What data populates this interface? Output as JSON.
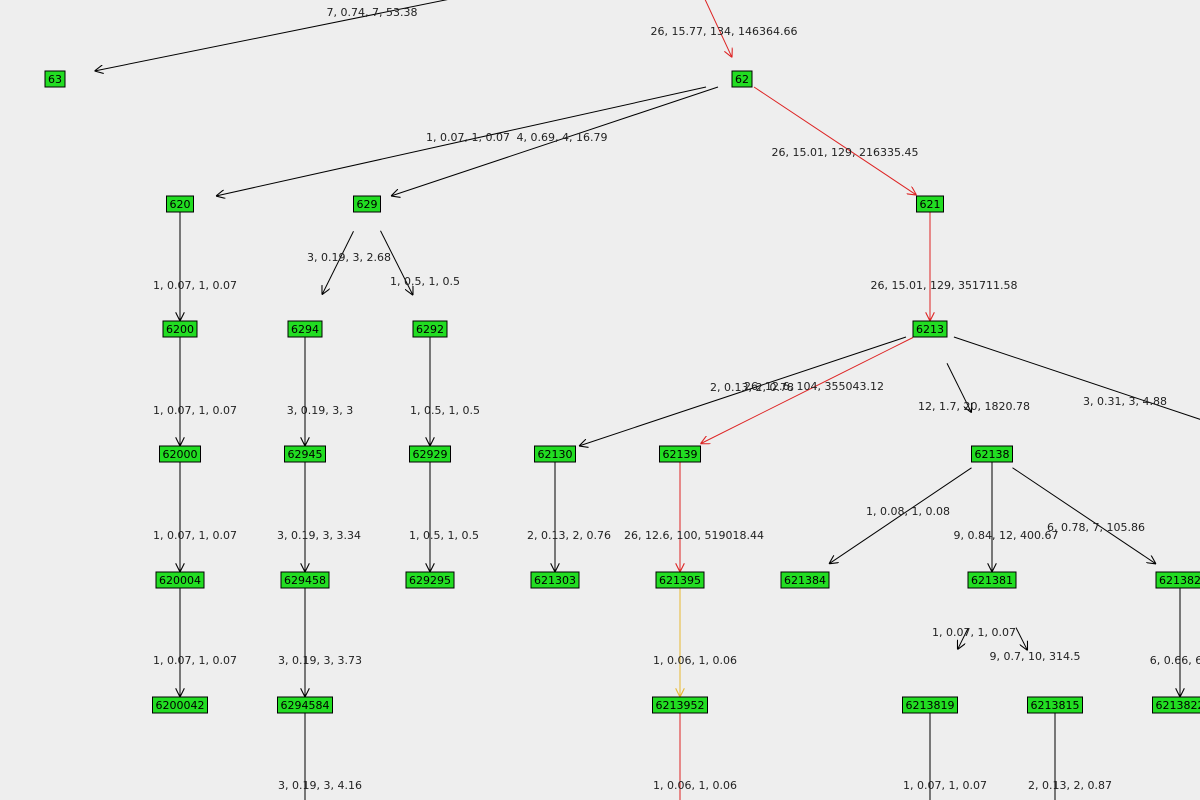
{
  "colors": {
    "background": "#eeeeee",
    "node_fill": "#22dd22",
    "edge_default": "#000000",
    "edge_hot": "#dd2222",
    "edge_warm": "#e8b830"
  },
  "nodes": [
    {
      "id": "n63",
      "label": "63"
    },
    {
      "id": "n62",
      "label": "62"
    },
    {
      "id": "n620",
      "label": "620"
    },
    {
      "id": "n629",
      "label": "629"
    },
    {
      "id": "n621",
      "label": "621"
    },
    {
      "id": "n6200",
      "label": "6200"
    },
    {
      "id": "n6294",
      "label": "6294"
    },
    {
      "id": "n6292",
      "label": "6292"
    },
    {
      "id": "n6213",
      "label": "6213"
    },
    {
      "id": "n62000",
      "label": "62000"
    },
    {
      "id": "n62945",
      "label": "62945"
    },
    {
      "id": "n62929",
      "label": "62929"
    },
    {
      "id": "n62130",
      "label": "62130"
    },
    {
      "id": "n62139",
      "label": "62139"
    },
    {
      "id": "n62138",
      "label": "62138"
    },
    {
      "id": "n620004",
      "label": "620004"
    },
    {
      "id": "n629458",
      "label": "629458"
    },
    {
      "id": "n629295",
      "label": "629295"
    },
    {
      "id": "n621303",
      "label": "621303"
    },
    {
      "id": "n621395",
      "label": "621395"
    },
    {
      "id": "n621384",
      "label": "621384"
    },
    {
      "id": "n621381",
      "label": "621381"
    },
    {
      "id": "n621382",
      "label": "621382"
    },
    {
      "id": "n6200042",
      "label": "6200042"
    },
    {
      "id": "n6294584",
      "label": "6294584"
    },
    {
      "id": "n6213952",
      "label": "6213952"
    },
    {
      "id": "n6213819",
      "label": "6213819"
    },
    {
      "id": "n6213815",
      "label": "6213815"
    },
    {
      "id": "n6213822",
      "label": "6213822"
    }
  ],
  "edges": [
    {
      "id": "e_top_62",
      "from": null,
      "to": "n62",
      "label": "26, 15.77, 134, 146364.66",
      "color": "hot"
    },
    {
      "id": "e_top_63",
      "from": null,
      "to": "n63",
      "label": "7, 0.74, 7, 53.38",
      "color": "default"
    },
    {
      "id": "e_62_620",
      "from": "n62",
      "to": "n620",
      "label": "1, 0.07, 1, 0.07",
      "color": "default"
    },
    {
      "id": "e_62_629",
      "from": "n62",
      "to": "n629",
      "label": "4, 0.69, 4, 16.79",
      "color": "default"
    },
    {
      "id": "e_62_621",
      "from": "n62",
      "to": "n621",
      "label": "26, 15.01, 129, 216335.45",
      "color": "hot"
    },
    {
      "id": "e_620_6200",
      "from": "n620",
      "to": "n6200",
      "label": "1, 0.07, 1, 0.07",
      "color": "default"
    },
    {
      "id": "e_629_6294",
      "from": "n629",
      "to": "n6294",
      "label": "3, 0.19, 3, 2.68",
      "color": "default"
    },
    {
      "id": "e_629_6292",
      "from": "n629",
      "to": "n6292",
      "label": "1, 0.5, 1, 0.5",
      "color": "default"
    },
    {
      "id": "e_621_6213",
      "from": "n621",
      "to": "n6213",
      "label": "26, 15.01, 129, 351711.58",
      "color": "hot"
    },
    {
      "id": "e_6200_62000",
      "from": "n6200",
      "to": "n62000",
      "label": "1, 0.07, 1, 0.07",
      "color": "default"
    },
    {
      "id": "e_6294_62945",
      "from": "n6294",
      "to": "n62945",
      "label": "3, 0.19, 3, 3",
      "color": "default"
    },
    {
      "id": "e_6292_62929",
      "from": "n6292",
      "to": "n62929",
      "label": "1, 0.5, 1, 0.5",
      "color": "default"
    },
    {
      "id": "e_6213_62130",
      "from": "n6213",
      "to": "n62130",
      "label": "2, 0.13, 2, 0.78",
      "color": "default"
    },
    {
      "id": "e_6213_62139",
      "from": "n6213",
      "to": "n62139",
      "label": "26, 12.6, 104, 355043.12",
      "color": "hot"
    },
    {
      "id": "e_6213_62138",
      "from": "n6213",
      "to": "n62138",
      "label": "12, 1.7, 20, 1820.78",
      "color": "default"
    },
    {
      "id": "e_6213_right",
      "from": "n6213",
      "to": null,
      "label": "3, 0.31, 3, 4.88",
      "color": "default"
    },
    {
      "id": "e_62000_620004",
      "from": "n62000",
      "to": "n620004",
      "label": "1, 0.07, 1, 0.07",
      "color": "default"
    },
    {
      "id": "e_62945_629458",
      "from": "n62945",
      "to": "n629458",
      "label": "3, 0.19, 3, 3.34",
      "color": "default"
    },
    {
      "id": "e_62929_629295",
      "from": "n62929",
      "to": "n629295",
      "label": "1, 0.5, 1, 0.5",
      "color": "default"
    },
    {
      "id": "e_62130_621303",
      "from": "n62130",
      "to": "n621303",
      "label": "2, 0.13, 2, 0.76",
      "color": "default"
    },
    {
      "id": "e_62139_621395",
      "from": "n62139",
      "to": "n621395",
      "label": "26, 12.6, 100, 519018.44",
      "color": "hot"
    },
    {
      "id": "e_62138_621384",
      "from": "n62138",
      "to": "n621384",
      "label": "1, 0.08, 1, 0.08",
      "color": "default"
    },
    {
      "id": "e_62138_621381",
      "from": "n62138",
      "to": "n621381",
      "label": "9, 0.84, 12, 400.67",
      "color": "default"
    },
    {
      "id": "e_62138_621382",
      "from": "n62138",
      "to": "n621382",
      "label": "6, 0.78, 7, 105.86",
      "color": "default"
    },
    {
      "id": "e_620004_6200042",
      "from": "n620004",
      "to": "n6200042",
      "label": "1, 0.07, 1, 0.07",
      "color": "default"
    },
    {
      "id": "e_629458_6294584",
      "from": "n629458",
      "to": "n6294584",
      "label": "3, 0.19, 3, 3.73",
      "color": "default"
    },
    {
      "id": "e_621395_6213952",
      "from": "n621395",
      "to": "n6213952",
      "label": "1, 0.06, 1, 0.06",
      "color": "warm"
    },
    {
      "id": "e_621381_6213819",
      "from": "n621381",
      "to": "n6213819",
      "label": "1, 0.07, 1, 0.07",
      "color": "default"
    },
    {
      "id": "e_621381_6213815",
      "from": "n621381",
      "to": "n6213815",
      "label": "9, 0.7, 10, 314.5",
      "color": "default"
    },
    {
      "id": "e_621382_6213822",
      "from": "n621382",
      "to": "n6213822",
      "label": "6, 0.66, 6",
      "color": "default"
    },
    {
      "id": "e_6294584_down",
      "from": "n6294584",
      "to": null,
      "label": "3, 0.19, 3, 4.16",
      "color": "default"
    },
    {
      "id": "e_6213952_down",
      "from": "n6213952",
      "to": null,
      "label": "1, 0.06, 1, 0.06",
      "color": "hot"
    },
    {
      "id": "e_6213819_down",
      "from": "n6213819",
      "to": null,
      "label": "1, 0.07, 1, 0.07",
      "color": "default"
    },
    {
      "id": "e_6213815_down",
      "from": "n6213815",
      "to": null,
      "label": "2, 0.13, 2, 0.87",
      "color": "default"
    }
  ]
}
